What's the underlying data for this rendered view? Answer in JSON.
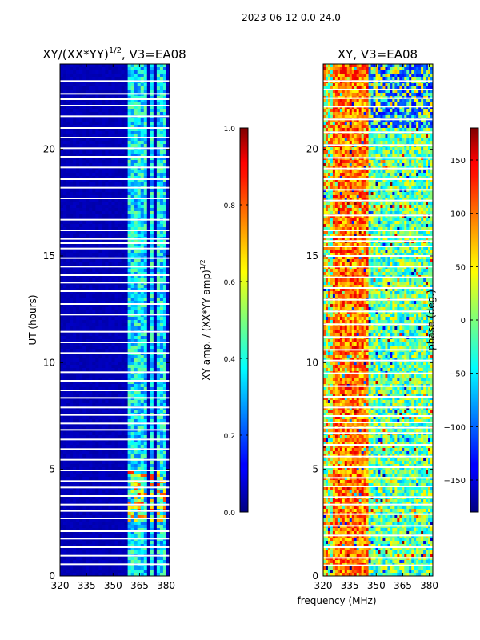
{
  "figure": {
    "suptitle": "2023-06-12 0.0-24.0",
    "shared_xlabel": "frequency (MHz)"
  },
  "chart_data": [
    {
      "type": "heatmap",
      "title_text": "XY/(XX*YY)",
      "title_exp": "1/2",
      "title_suffix": ", V3=EA08",
      "xlabel": "",
      "ylabel": "UT (hours)",
      "xlim": [
        320,
        382
      ],
      "ylim": [
        0,
        24
      ],
      "xticks": [
        320,
        335,
        350,
        365,
        380
      ],
      "yticks": [
        0,
        5,
        10,
        15,
        20
      ],
      "colormap": "jet",
      "colorbar": {
        "label_text": "XY amp. / (XX*YY amp)",
        "label_exp": "1/2",
        "range": [
          0.0,
          1.0
        ],
        "ticks": [
          0.0,
          0.2,
          0.4,
          0.6,
          0.8,
          1.0
        ],
        "tick_labels": [
          "0.0",
          "0.2",
          "0.4",
          "0.6",
          "0.8",
          "1.0"
        ]
      },
      "value_model": "amplitude",
      "background_value": 0.04,
      "bright_bands_mhz": [
        [
          359,
          362
        ],
        [
          362,
          365
        ],
        [
          366,
          370
        ],
        [
          371,
          373
        ],
        [
          375,
          378
        ],
        [
          378,
          381
        ]
      ],
      "flag_gaps_hours": [
        0.55,
        0.95,
        1.35,
        1.75,
        2.1,
        2.7,
        3.05,
        3.35,
        3.75,
        4.15,
        4.45,
        4.95,
        5.45,
        5.95,
        6.4,
        6.85,
        7.15,
        7.55,
        7.9,
        8.35,
        8.7,
        9.15,
        9.55,
        10.45,
        10.95,
        11.45,
        12.25,
        12.75,
        13.35,
        13.75,
        14.1,
        14.5,
        14.9,
        15.35,
        15.6,
        15.8,
        16.2,
        16.7,
        17.7,
        18.2,
        18.6,
        19.15,
        19.65,
        20.05,
        20.55,
        21.0,
        21.55,
        22.05,
        22.35,
        22.6,
        23.2
      ]
    },
    {
      "type": "heatmap",
      "title_text": "XY, V3=EA08",
      "xlabel": "",
      "ylabel": "",
      "xlim": [
        320,
        382
      ],
      "ylim": [
        0,
        24
      ],
      "xticks": [
        320,
        335,
        350,
        365,
        380
      ],
      "yticks": [
        0,
        5,
        10,
        15,
        20
      ],
      "colormap": "jet",
      "colorbar": {
        "label_text": "phase (deg.)",
        "range": [
          -180,
          180
        ],
        "ticks": [
          -150,
          -100,
          -50,
          0,
          50,
          100,
          150
        ],
        "tick_labels": [
          "−150",
          "−100",
          "−50",
          "0",
          "50",
          "100",
          "150"
        ]
      },
      "value_model": "phase",
      "warm_band_mhz": [
        326,
        345
      ],
      "flag_gaps_hours": [
        0.5,
        0.85,
        1.35,
        1.9,
        2.35,
        2.9,
        3.35,
        3.7,
        4.2,
        4.6,
        5.1,
        5.6,
        6.15,
        6.7,
        6.95,
        7.2,
        7.5,
        7.9,
        8.4,
        8.9,
        9.5,
        10.1,
        10.6,
        11.2,
        11.8,
        12.4,
        12.95,
        13.5,
        14.0,
        14.5,
        15.0,
        15.45,
        15.7,
        15.9,
        16.2,
        16.9,
        17.6,
        18.1,
        18.6,
        19.1,
        19.6,
        20.2,
        20.8,
        21.4,
        22.0,
        22.4,
        22.8,
        23.2
      ]
    }
  ]
}
